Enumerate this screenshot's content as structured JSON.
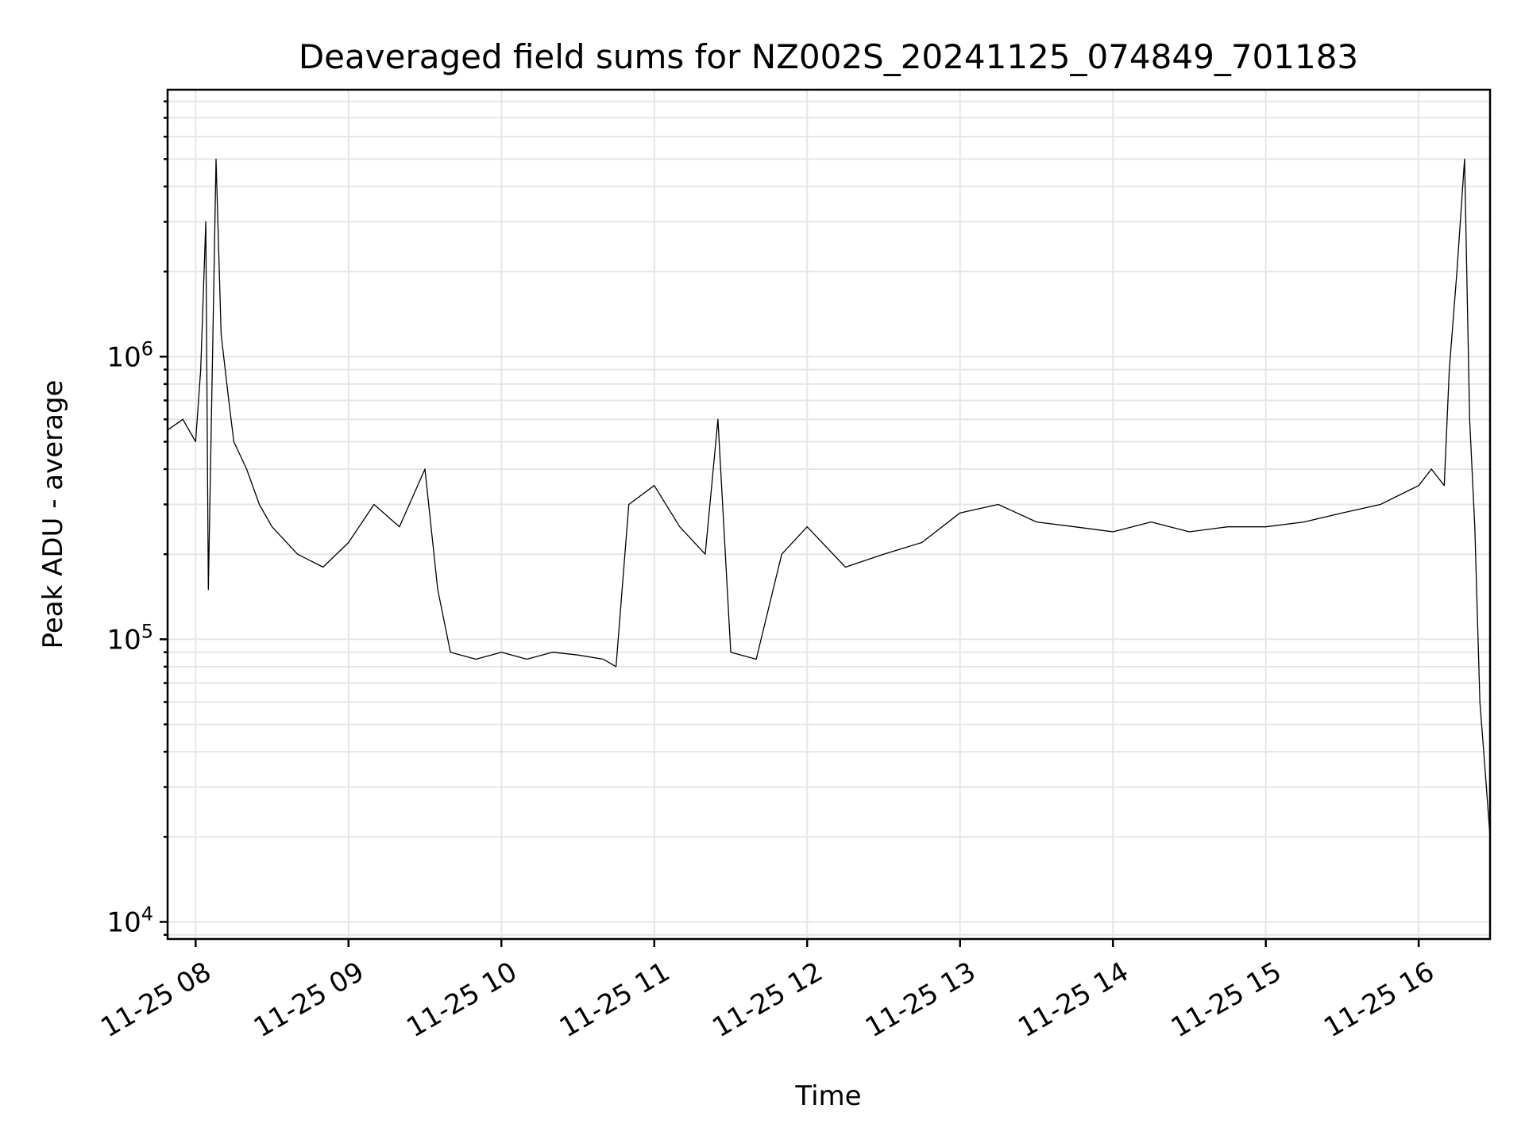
{
  "chart_data": {
    "type": "line",
    "title": "Deaveraged field sums for NZ002S_20241125_074849_701183",
    "xlabel": "Time",
    "ylabel": "Peak ADU - average",
    "yscale": "log",
    "ylim": [
      8700,
      8800000
    ],
    "xlim": [
      "2024-11-25 07:49",
      "2024-11-25 16:28"
    ],
    "grid": true,
    "x_ticks": [
      "11-25 08",
      "11-25 09",
      "11-25 10",
      "11-25 11",
      "11-25 12",
      "11-25 13",
      "11-25 14",
      "11-25 15",
      "11-25 16"
    ],
    "y_ticks": [
      10000,
      100000,
      1000000
    ],
    "y_tick_labels": [
      "10^4",
      "10^5",
      "10^6"
    ],
    "series": [
      {
        "color": "#000000",
        "x": [
          "2024-11-25 07:49",
          "2024-11-25 07:55",
          "2024-11-25 08:00",
          "2024-11-25 08:02",
          "2024-11-25 08:04",
          "2024-11-25 08:05",
          "2024-11-25 08:07",
          "2024-11-25 08:08",
          "2024-11-25 08:10",
          "2024-11-25 08:13",
          "2024-11-25 08:15",
          "2024-11-25 08:20",
          "2024-11-25 08:25",
          "2024-11-25 08:30",
          "2024-11-25 08:40",
          "2024-11-25 08:50",
          "2024-11-25 09:00",
          "2024-11-25 09:10",
          "2024-11-25 09:20",
          "2024-11-25 09:30",
          "2024-11-25 09:35",
          "2024-11-25 09:40",
          "2024-11-25 09:50",
          "2024-11-25 10:00",
          "2024-11-25 10:10",
          "2024-11-25 10:20",
          "2024-11-25 10:30",
          "2024-11-25 10:40",
          "2024-11-25 10:45",
          "2024-11-25 10:50",
          "2024-11-25 11:00",
          "2024-11-25 11:10",
          "2024-11-25 11:20",
          "2024-11-25 11:25",
          "2024-11-25 11:30",
          "2024-11-25 11:40",
          "2024-11-25 11:50",
          "2024-11-25 12:00",
          "2024-11-25 12:15",
          "2024-11-25 12:30",
          "2024-11-25 12:45",
          "2024-11-25 13:00",
          "2024-11-25 13:15",
          "2024-11-25 13:30",
          "2024-11-25 13:45",
          "2024-11-25 14:00",
          "2024-11-25 14:15",
          "2024-11-25 14:30",
          "2024-11-25 14:45",
          "2024-11-25 15:00",
          "2024-11-25 15:15",
          "2024-11-25 15:30",
          "2024-11-25 15:45",
          "2024-11-25 16:00",
          "2024-11-25 16:05",
          "2024-11-25 16:10",
          "2024-11-25 16:12",
          "2024-11-25 16:15",
          "2024-11-25 16:18",
          "2024-11-25 16:20",
          "2024-11-25 16:22",
          "2024-11-25 16:24",
          "2024-11-25 16:26",
          "2024-11-25 16:28"
        ],
        "y": [
          550000,
          600000,
          500000,
          900000,
          3000000,
          150000,
          1500000,
          5000000,
          1200000,
          700000,
          500000,
          400000,
          300000,
          250000,
          200000,
          180000,
          220000,
          300000,
          250000,
          400000,
          150000,
          90000,
          85000,
          90000,
          85000,
          90000,
          88000,
          85000,
          80000,
          300000,
          350000,
          250000,
          200000,
          600000,
          90000,
          85000,
          200000,
          250000,
          180000,
          200000,
          220000,
          280000,
          300000,
          260000,
          250000,
          240000,
          260000,
          240000,
          250000,
          250000,
          260000,
          280000,
          300000,
          350000,
          400000,
          350000,
          900000,
          2000000,
          5000000,
          600000,
          250000,
          60000,
          35000,
          20000
        ]
      }
    ]
  }
}
